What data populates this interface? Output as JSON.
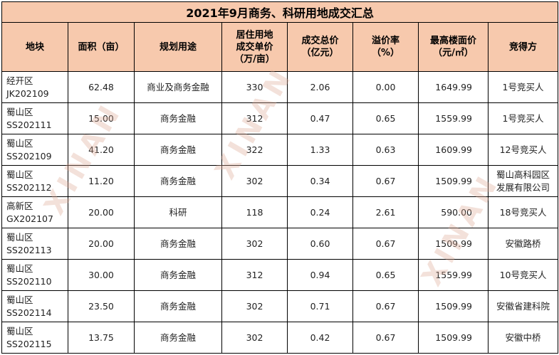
{
  "title": "2021年9月商务、科研用地成交汇总",
  "headers": [
    "地块",
    "面积（亩）",
    "规划用途",
    "居住用地\n成交单价\n（万/亩）",
    "成交总价\n（亿元）",
    "溢价率\n（%）",
    "最高楼面价\n（元/㎡）",
    "竞得方"
  ],
  "rows": [
    [
      "经开区\nJK202109",
      "62.48",
      "商业及商务金融",
      "330",
      "2.06",
      "0.00",
      "1649.99",
      "1号竞买人"
    ],
    [
      "蜀山区\nSS202111",
      "15.00",
      "商务金融",
      "312",
      "0.47",
      "0.65",
      "1559.99",
      "1号竞买人"
    ],
    [
      "蜀山区\nSS202109",
      "41.20",
      "商务金融",
      "322",
      "1.33",
      "0.63",
      "1609.99",
      "12号竞买人"
    ],
    [
      "蜀山区\nSS202112",
      "11.20",
      "商务金融",
      "302",
      "0.34",
      "0.67",
      "1509.99",
      "蜀山高科园区\n发展有限公司"
    ],
    [
      "高新区\nGX202107",
      "20.00",
      "科研",
      "118",
      "0.24",
      "2.61",
      "590.00",
      "18号竞买人"
    ],
    [
      "蜀山区\nSS202113",
      "20.00",
      "商务金融",
      "302",
      "0.60",
      "0.67",
      "1509.99",
      "安徽路桥"
    ],
    [
      "蜀山区\nSS202110",
      "30.00",
      "商务金融",
      "312",
      "0.94",
      "0.65",
      "1559.99",
      "10号竞买人"
    ],
    [
      "蜀山区\nSS202114",
      "23.50",
      "商务金融",
      "302",
      "0.71",
      "0.67",
      "1509.99",
      "安徽省建科院"
    ],
    [
      "蜀山区\nSS202115",
      "13.75",
      "商务金融",
      "302",
      "0.42",
      "0.67",
      "1509.99",
      "安徽中桥"
    ]
  ],
  "watermark": "XINAN"
}
